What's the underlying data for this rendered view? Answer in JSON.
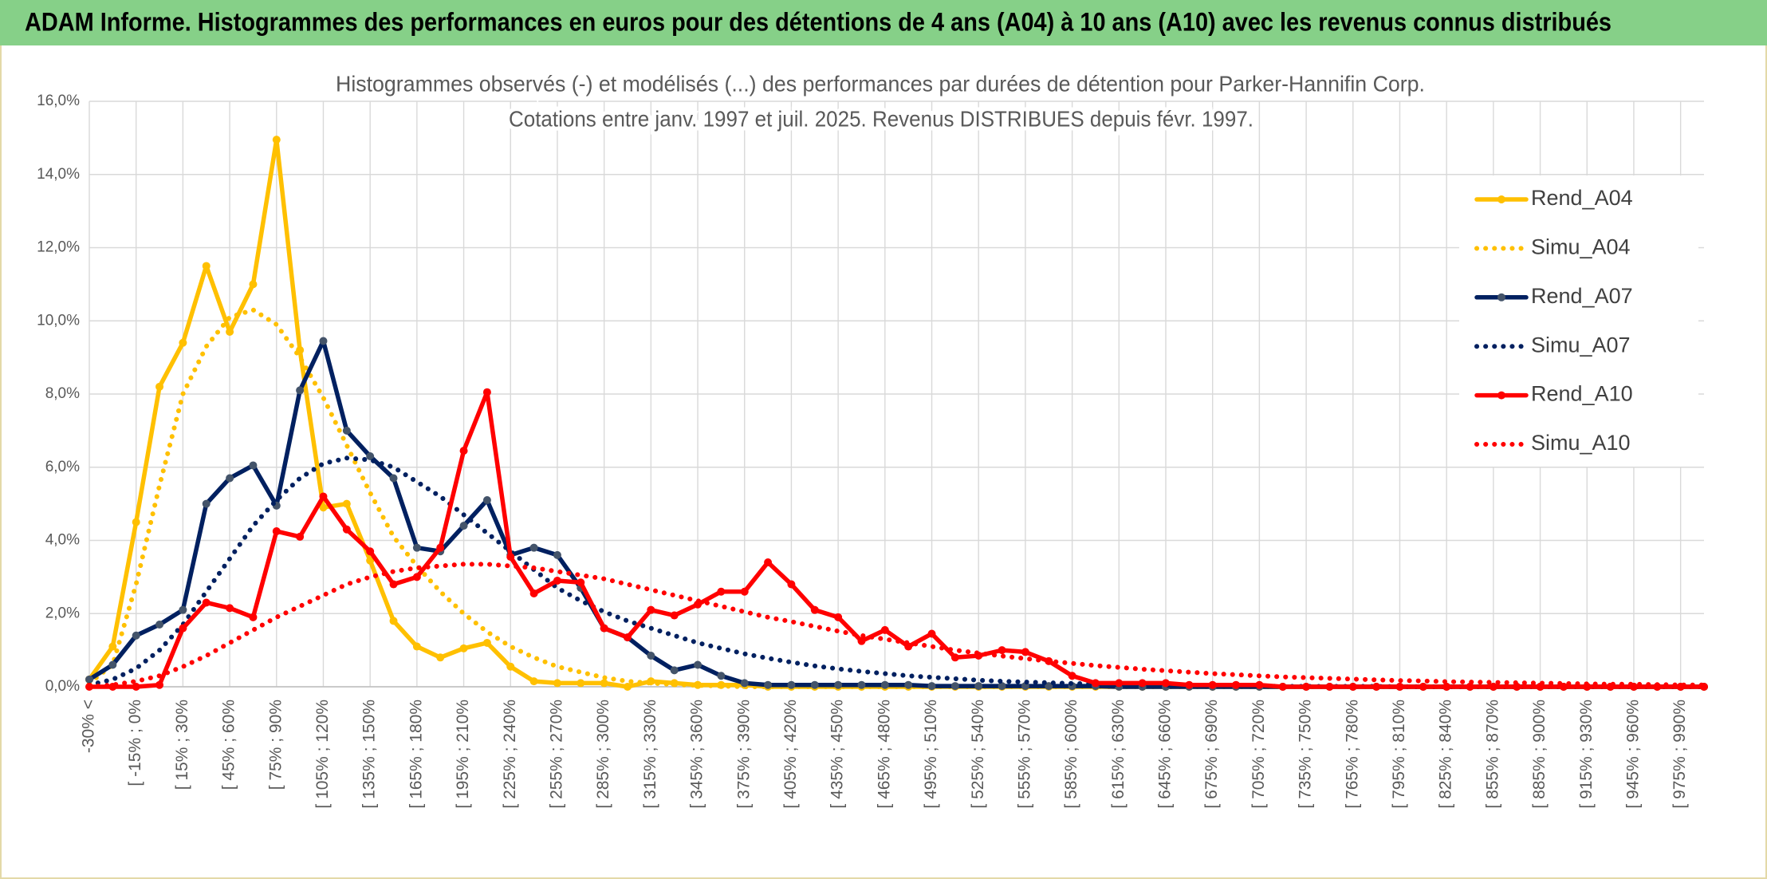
{
  "header": {
    "title": "ADAM Informe. Histogrammes des performances en euros pour des détentions de 4 ans (A04) à 10 ans (A10) avec les revenus connus distribués"
  },
  "chart_data": {
    "type": "line",
    "title": "Histogrammes observés (-) et modélisés (...) des performances par durées de détention pour Parker-Hannifin Corp.",
    "subtitle": "Cotations entre janv. 1997 et juil. 2025. Revenus DISTRIBUES depuis févr. 1997.",
    "categories": [
      "-30% <",
      null,
      "[ -15% ; 0%",
      null,
      "[ 15% ; 30%",
      null,
      "[ 45% ; 60%",
      null,
      "[ 75% ; 90%",
      null,
      "[ 105% ; 120%",
      null,
      "[ 135% ; 150%",
      null,
      "[ 165% ; 180%",
      null,
      "[ 195% ; 210%",
      null,
      "[ 225% ; 240%",
      null,
      "[ 255% ; 270%",
      null,
      "[ 285% ; 300%",
      null,
      "[ 315% ; 330%",
      null,
      "[ 345% ; 360%",
      null,
      "[ 375% ; 390%",
      null,
      "[ 405% ; 420%",
      null,
      "[ 435% ; 450%",
      null,
      "[ 465% ; 480%",
      null,
      "[ 495% ; 510%",
      null,
      "[ 525% ; 540%",
      null,
      "[ 555% ; 570%",
      null,
      "[ 585% ; 600%",
      null,
      "[ 615% ; 630%",
      null,
      "[ 645% ; 660%",
      null,
      "[ 675% ; 690%",
      null,
      "[ 705% ; 720%",
      null,
      "[ 735% ; 750%",
      null,
      "[ 765% ; 780%",
      null,
      "[ 795% ; 810%",
      null,
      "[ 825% ; 840%",
      null,
      "[ 855% ; 870%",
      null,
      "[ 885% ; 900%",
      null,
      "[ 915% ; 930%",
      null,
      "[ 945% ; 960%",
      null,
      "[ 975% ; 990%",
      null
    ],
    "series": [
      {
        "name": "Rend_A04",
        "color": "#ffc000",
        "style": "solid",
        "values": [
          0.2,
          1.1,
          4.5,
          8.2,
          9.4,
          11.5,
          9.7,
          11.0,
          14.95,
          9.2,
          4.9,
          5.0,
          3.45,
          1.8,
          1.1,
          0.8,
          1.05,
          1.2,
          0.55,
          0.15,
          0.1,
          0.1,
          0.1,
          0.0,
          0.15,
          0.1,
          0.05,
          0.05,
          0.05,
          0,
          0,
          0,
          0,
          0,
          0,
          0,
          0,
          0,
          0,
          0,
          0,
          0,
          0,
          0,
          0,
          0,
          0,
          0,
          0,
          0,
          0,
          0,
          0,
          0,
          0,
          0,
          0,
          0,
          0,
          0,
          0,
          0,
          0,
          0,
          0,
          0,
          0,
          0,
          0,
          0
        ]
      },
      {
        "name": "Simu_A04",
        "color": "#ffc000",
        "style": "dotted",
        "values": [
          0.1,
          0.6,
          2.8,
          5.5,
          8.0,
          9.3,
          10.1,
          10.3,
          9.9,
          9.0,
          7.9,
          6.6,
          5.3,
          4.1,
          3.3,
          2.6,
          2.0,
          1.5,
          1.1,
          0.8,
          0.55,
          0.4,
          0.25,
          0.15,
          0.1,
          0.06,
          0.04,
          0.02,
          0,
          0,
          0,
          0,
          0,
          0,
          0,
          0,
          0,
          0,
          0,
          0,
          0,
          0,
          0,
          0,
          0,
          0,
          0,
          0,
          0,
          0,
          0,
          0,
          0,
          0,
          0,
          0,
          0,
          0,
          0,
          0,
          0,
          0,
          0,
          0,
          0,
          0,
          0,
          0,
          0,
          0
        ]
      },
      {
        "name": "Rend_A07",
        "color": "#002060",
        "style": "solid",
        "values": [
          0.2,
          0.6,
          1.4,
          1.7,
          2.1,
          5.0,
          5.7,
          6.05,
          4.95,
          8.1,
          9.45,
          7.0,
          6.3,
          5.7,
          3.8,
          3.7,
          4.4,
          5.1,
          3.6,
          3.8,
          3.6,
          2.7,
          1.6,
          1.35,
          0.85,
          0.45,
          0.6,
          0.3,
          0.1,
          0.05,
          0.05,
          0.05,
          0.05,
          0.05,
          0.05,
          0.05,
          0.02,
          0.02,
          0.02,
          0.02,
          0.02,
          0.02,
          0.02,
          0.02,
          0,
          0,
          0,
          0,
          0,
          0,
          0,
          0,
          0,
          0,
          0,
          0,
          0,
          0,
          0,
          0,
          0,
          0,
          0,
          0,
          0,
          0,
          0,
          0,
          0,
          0
        ]
      },
      {
        "name": "Simu_A07",
        "color": "#002060",
        "style": "dotted",
        "values": [
          0.05,
          0.2,
          0.5,
          1.0,
          1.7,
          2.6,
          3.5,
          4.4,
          5.1,
          5.7,
          6.1,
          6.25,
          6.2,
          6.0,
          5.6,
          5.2,
          4.7,
          4.2,
          3.7,
          3.2,
          2.7,
          2.35,
          2.05,
          1.8,
          1.6,
          1.4,
          1.2,
          1.05,
          0.9,
          0.78,
          0.67,
          0.57,
          0.49,
          0.42,
          0.36,
          0.3,
          0.26,
          0.22,
          0.18,
          0.15,
          0.13,
          0.11,
          0.09,
          0.08,
          0.06,
          0.05,
          0.04,
          0.03,
          0.02,
          0.02,
          0.02,
          0.01,
          0.01,
          0.01,
          0.01,
          0.01,
          0,
          0,
          0,
          0,
          0,
          0,
          0,
          0,
          0,
          0,
          0,
          0,
          0,
          0
        ]
      },
      {
        "name": "Rend_A10",
        "color": "#ff0000",
        "style": "solid",
        "values": [
          0,
          0,
          0,
          0.05,
          1.6,
          2.3,
          2.15,
          1.9,
          4.25,
          4.1,
          5.2,
          4.3,
          3.7,
          2.8,
          3.0,
          3.8,
          6.45,
          8.05,
          3.55,
          2.55,
          2.9,
          2.85,
          1.6,
          1.35,
          2.1,
          1.95,
          2.25,
          2.6,
          2.6,
          3.4,
          2.8,
          2.1,
          1.9,
          1.25,
          1.55,
          1.1,
          1.45,
          0.8,
          0.85,
          1.0,
          0.95,
          0.7,
          0.3,
          0.1,
          0.1,
          0.1,
          0.1,
          0.05,
          0.05,
          0.05,
          0.05,
          0,
          0,
          0,
          0,
          0,
          0,
          0,
          0,
          0,
          0,
          0,
          0,
          0,
          0,
          0,
          0,
          0,
          0,
          0
        ]
      },
      {
        "name": "Simu_A10",
        "color": "#ff0000",
        "style": "dotted",
        "values": [
          0.0,
          0.05,
          0.15,
          0.3,
          0.55,
          0.85,
          1.2,
          1.55,
          1.9,
          2.2,
          2.5,
          2.8,
          3.0,
          3.15,
          3.25,
          3.3,
          3.35,
          3.35,
          3.3,
          3.25,
          3.15,
          3.05,
          2.95,
          2.8,
          2.65,
          2.5,
          2.35,
          2.2,
          2.05,
          1.9,
          1.78,
          1.65,
          1.52,
          1.4,
          1.3,
          1.2,
          1.1,
          1.0,
          0.92,
          0.84,
          0.77,
          0.7,
          0.64,
          0.58,
          0.53,
          0.48,
          0.44,
          0.4,
          0.36,
          0.33,
          0.3,
          0.27,
          0.25,
          0.23,
          0.21,
          0.19,
          0.17,
          0.16,
          0.14,
          0.13,
          0.12,
          0.11,
          0.1,
          0.09,
          0.08,
          0.07,
          0.07,
          0.06,
          0.05,
          0.05
        ]
      }
    ],
    "ylim": [
      0,
      16
    ],
    "yticks": [
      {
        "value": 0,
        "label": "0,0%"
      },
      {
        "value": 2,
        "label": "2,0%"
      },
      {
        "value": 4,
        "label": "4,0%"
      },
      {
        "value": 6,
        "label": "6,0%"
      },
      {
        "value": 8,
        "label": "8,0%"
      },
      {
        "value": 10,
        "label": "10,0%"
      },
      {
        "value": 12,
        "label": "12,0%"
      },
      {
        "value": 14,
        "label": "14,0%"
      },
      {
        "value": 16,
        "label": "16,0%"
      }
    ],
    "grid": true,
    "legend": "upper right"
  }
}
